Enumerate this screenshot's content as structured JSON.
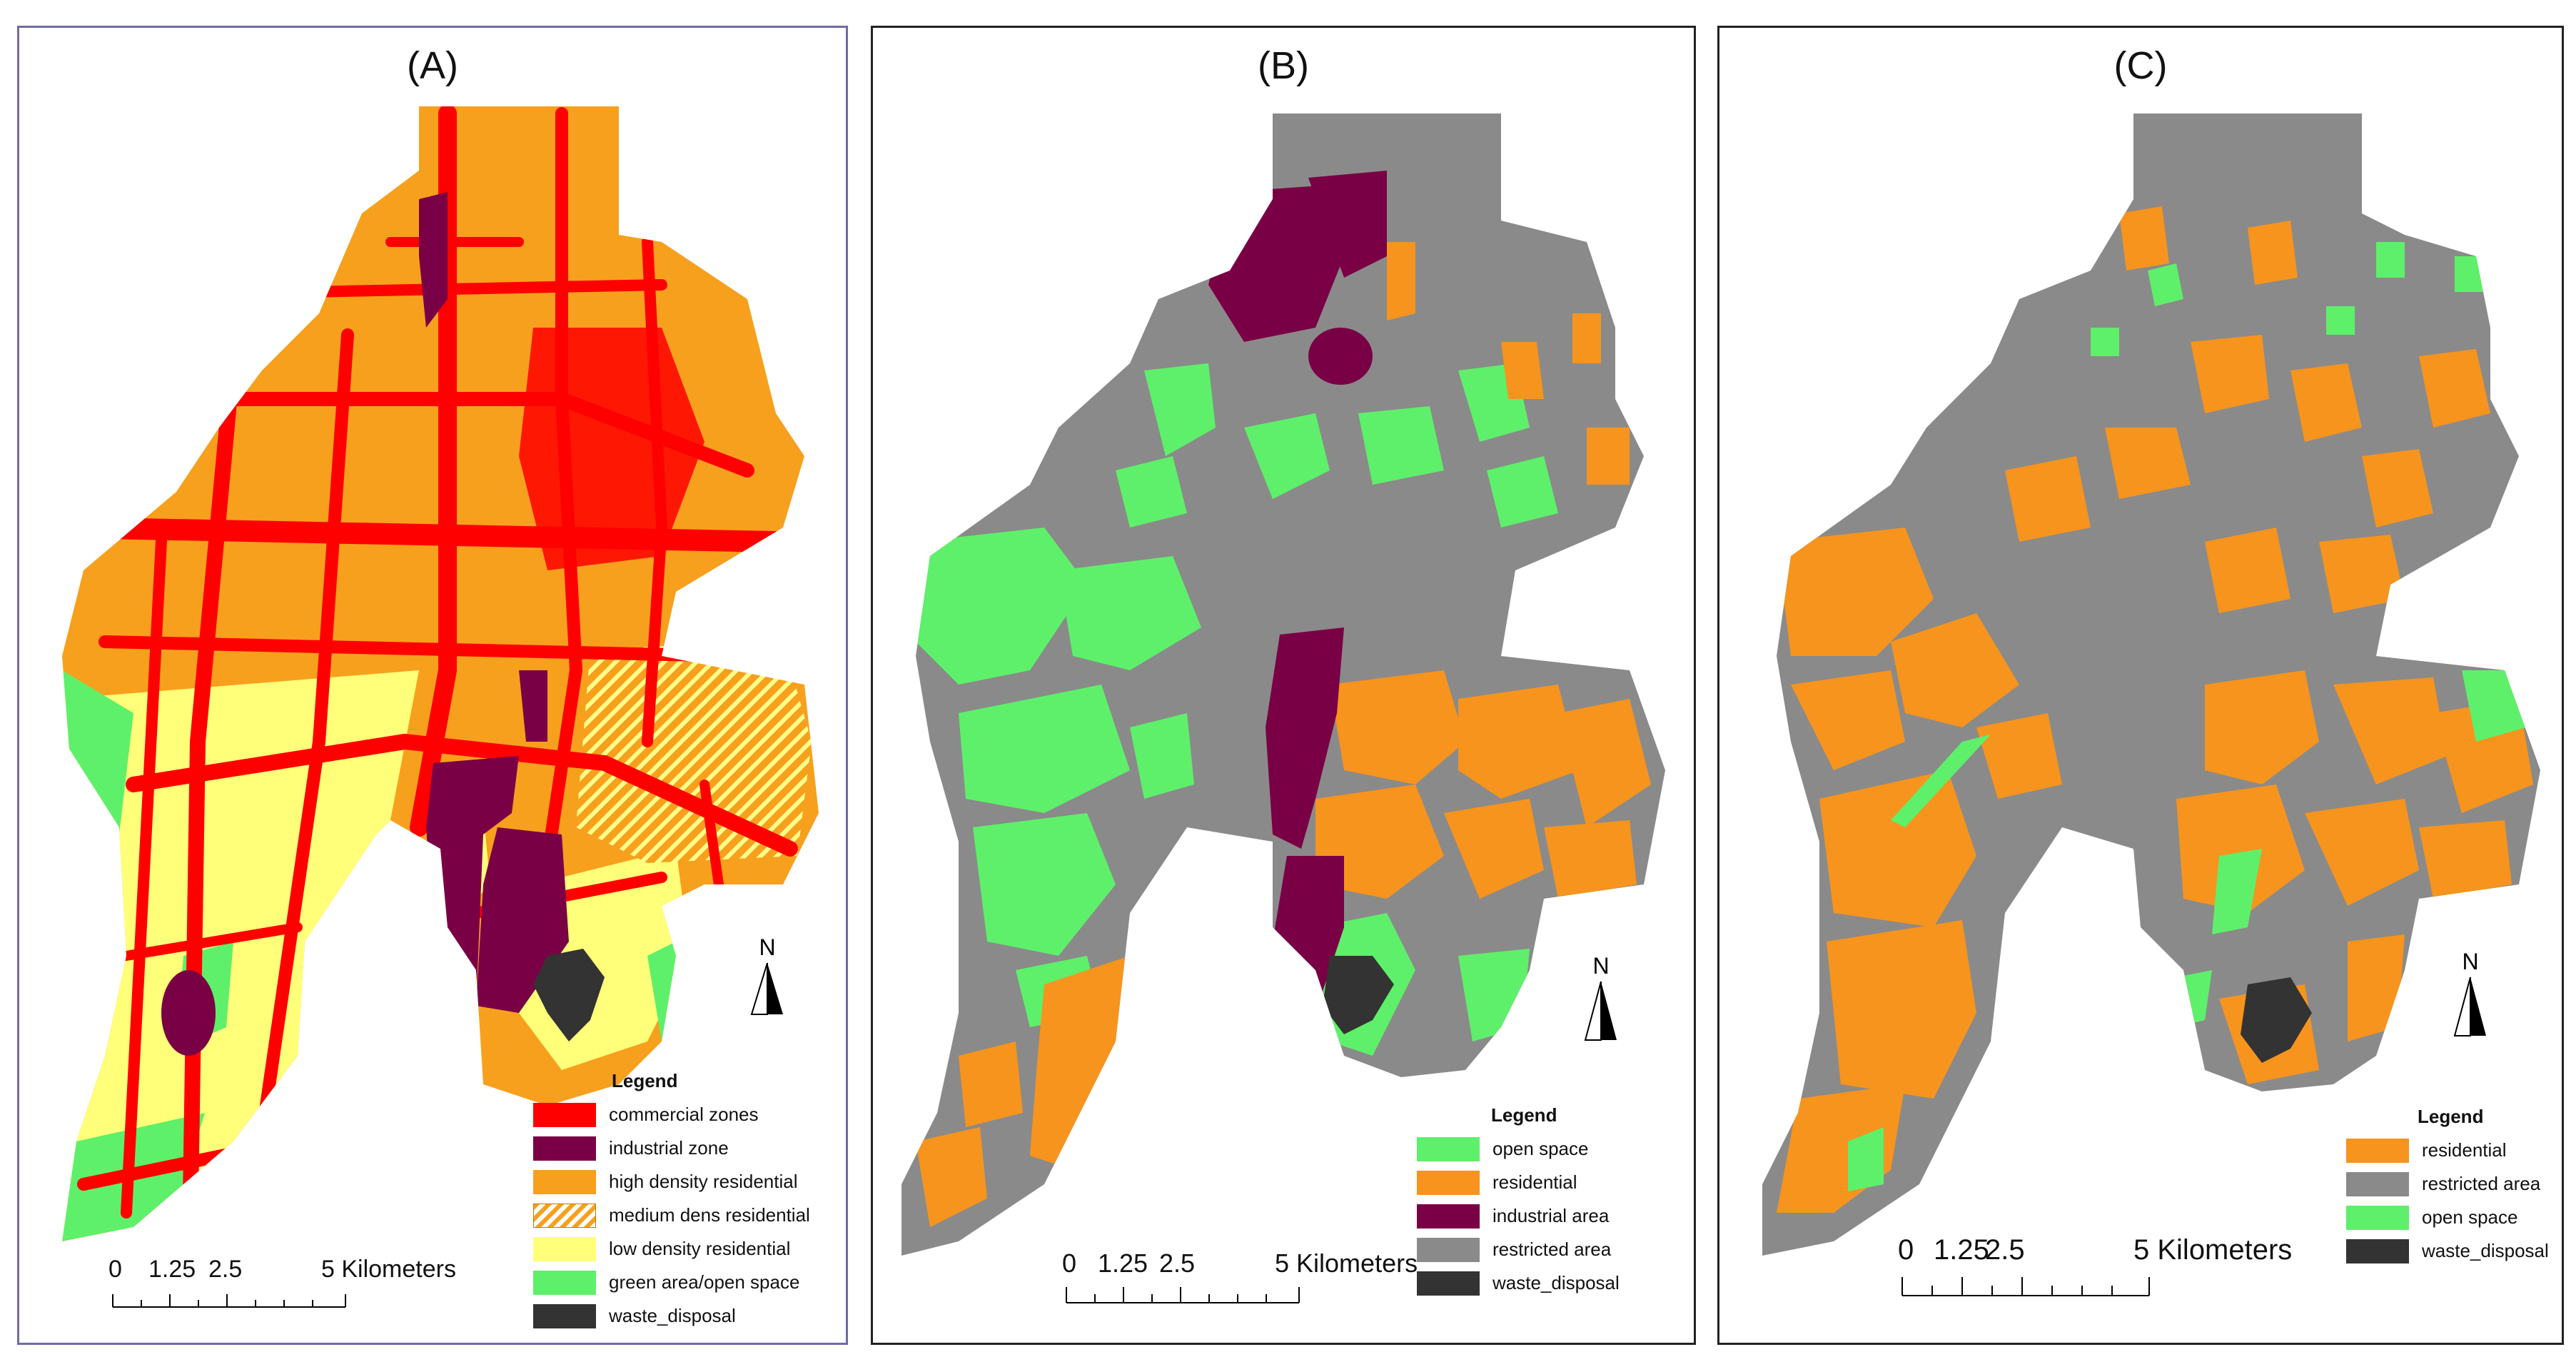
{
  "panels": [
    {
      "title": "(A)",
      "legend": {
        "title": "Legend",
        "items": [
          {
            "label": "commercial zones",
            "color": "#ff0000"
          },
          {
            "label": "industrial zone",
            "color": "#7a0046"
          },
          {
            "label": "high density residential",
            "color": "#f7a01d"
          },
          {
            "label": "medium dens residential",
            "color": "hatch"
          },
          {
            "label": "low density residential",
            "color": "#ffff7a"
          },
          {
            "label": "green area/open space",
            "color": "#5ef06a"
          },
          {
            "label": "waste_disposal",
            "color": "#333333"
          }
        ]
      },
      "north": "N",
      "scale": {
        "labels": [
          "0",
          "1.25",
          "2.5",
          "5 Kilometers"
        ]
      }
    },
    {
      "title": "(B)",
      "legend": {
        "title": "Legend",
        "items": [
          {
            "label": "open space",
            "color": "#5ef06a"
          },
          {
            "label": "residential",
            "color": "#f7941d"
          },
          {
            "label": "industrial area",
            "color": "#7a0046"
          },
          {
            "label": "restricted area",
            "color": "#8a8a8a"
          },
          {
            "label": "waste_disposal",
            "color": "#333333"
          }
        ]
      },
      "north": "N",
      "scale": {
        "labels": [
          "0",
          "1.25",
          "2.5",
          "5 Kilometers"
        ]
      }
    },
    {
      "title": "(C)",
      "legend": {
        "title": "Legend",
        "items": [
          {
            "label": "residential",
            "color": "#f7941d"
          },
          {
            "label": "restricted area",
            "color": "#8a8a8a"
          },
          {
            "label": "open space",
            "color": "#5ef06a"
          },
          {
            "label": "waste_disposal",
            "color": "#333333"
          }
        ]
      },
      "north": "N",
      "scale": {
        "labels": [
          "0",
          "1.25",
          "2.5",
          "5 Kilometers"
        ]
      }
    }
  ]
}
